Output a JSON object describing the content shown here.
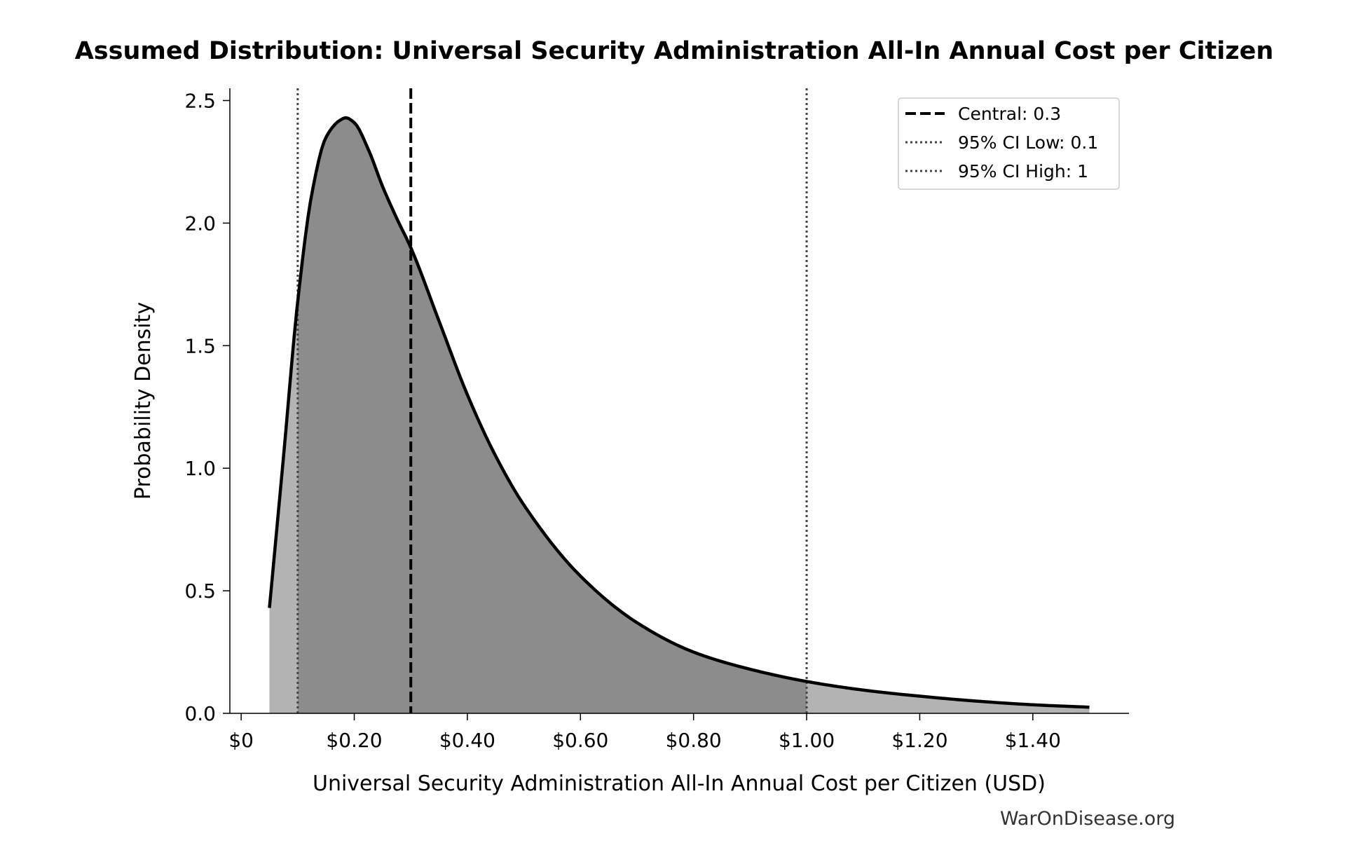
{
  "chart_data": {
    "type": "area",
    "title": "Assumed Distribution: Universal Security Administration All-In Annual Cost per Citizen",
    "xlabel": "Universal Security Administration All-In Annual Cost per Citizen (USD)",
    "ylabel": "Probability Density",
    "xlim": [
      -0.02,
      1.57
    ],
    "ylim": [
      0,
      2.55
    ],
    "x_ticks": [
      {
        "value": 0,
        "label": "$0"
      },
      {
        "value": 0.2,
        "label": "$0.20"
      },
      {
        "value": 0.4,
        "label": "$0.40"
      },
      {
        "value": 0.6,
        "label": "$0.60"
      },
      {
        "value": 0.8,
        "label": "$0.80"
      },
      {
        "value": 1.0,
        "label": "$1.00"
      },
      {
        "value": 1.2,
        "label": "$1.20"
      },
      {
        "value": 1.4,
        "label": "$1.40"
      }
    ],
    "y_ticks": [
      {
        "value": 0,
        "label": "0.0"
      },
      {
        "value": 0.5,
        "label": "0.5"
      },
      {
        "value": 1.0,
        "label": "1.0"
      },
      {
        "value": 1.5,
        "label": "1.5"
      },
      {
        "value": 2.0,
        "label": "2.0"
      },
      {
        "value": 2.5,
        "label": "2.5"
      }
    ],
    "x": [
      0.05,
      0.075,
      0.1,
      0.125,
      0.15,
      0.175,
      0.185,
      0.2,
      0.225,
      0.25,
      0.275,
      0.3,
      0.35,
      0.4,
      0.45,
      0.5,
      0.6,
      0.7,
      0.8,
      0.9,
      1.0,
      1.1,
      1.2,
      1.3,
      1.4,
      1.5
    ],
    "density": [
      0.43,
      1.05,
      1.68,
      2.12,
      2.35,
      2.42,
      2.43,
      2.41,
      2.3,
      2.15,
      2.02,
      1.9,
      1.6,
      1.3,
      1.05,
      0.85,
      0.56,
      0.37,
      0.25,
      0.18,
      0.13,
      0.095,
      0.07,
      0.05,
      0.035,
      0.025
    ],
    "central": 0.3,
    "ci_low": 0.1,
    "ci_high": 1.0,
    "grid": false,
    "legend_position": "top-right",
    "legend": [
      {
        "label": "Central: 0.3",
        "style": "dashed"
      },
      {
        "label": "95% CI Low: 0.1",
        "style": "dotted"
      },
      {
        "label": "95% CI High: 1",
        "style": "dotted"
      }
    ],
    "colors": {
      "curve": "#000000",
      "ci_fill": "#8c8c8c",
      "tail_fill": "#b3b3b3",
      "central_line": "#000000",
      "ci_lines": "#444444"
    }
  },
  "footer": {
    "source": "WarOnDisease.org"
  }
}
